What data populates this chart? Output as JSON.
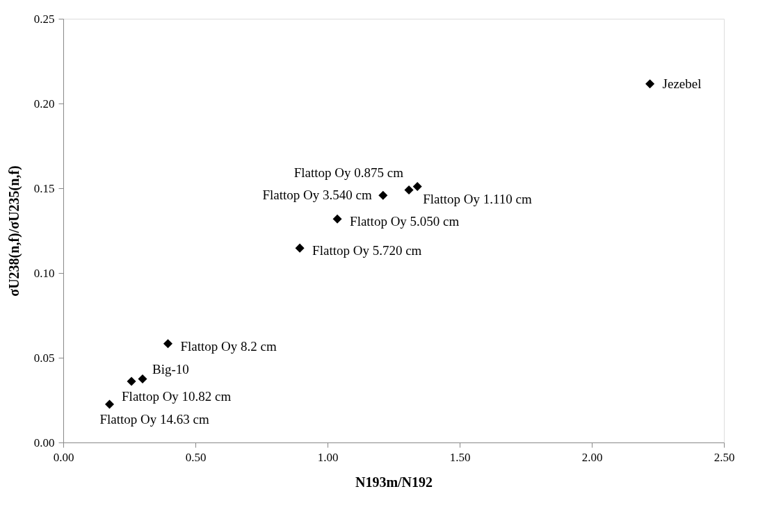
{
  "chart_data": {
    "type": "scatter",
    "xlabel": "N193m/N192",
    "ylabel": "σU238(n,f)/σU235(n,f)",
    "x": [
      2.22,
      1.308,
      1.21,
      1.34,
      1.037,
      0.895,
      0.396,
      0.3,
      0.258,
      0.175
    ],
    "series": [
      {
        "color": "#000000",
        "values": [
          0.2116,
          0.149,
          0.1458,
          0.151,
          0.1319,
          0.1147,
          0.0583,
          0.0375,
          0.0361,
          0.0225
        ]
      }
    ],
    "annotations": [
      {
        "text": "Jezebel",
        "x": 2.22,
        "y": 0.2116
      },
      {
        "text": "Flattop Oy 0.875 cm",
        "x": 1.308,
        "y": 0.149
      },
      {
        "text": "Flattop Oy 3.540 cm",
        "x": 1.21,
        "y": 0.1458
      },
      {
        "text": "Flattop Oy 1.110 cm",
        "x": 1.34,
        "y": 0.151
      },
      {
        "text": "Flattop Oy  5.050 cm",
        "x": 1.037,
        "y": 0.1319
      },
      {
        "text": "Flattop Oy 5.720 cm",
        "x": 0.895,
        "y": 0.1147
      },
      {
        "text": "Flattop Oy 8.2 cm",
        "x": 0.396,
        "y": 0.0583
      },
      {
        "text": "Big-10",
        "x": 0.3,
        "y": 0.0375
      },
      {
        "text": "Flattop Oy 10.82 cm",
        "x": 0.258,
        "y": 0.0361
      },
      {
        "text": "Flattop Oy 14.63 cm",
        "x": 0.175,
        "y": 0.0225
      }
    ],
    "xlim": [
      0,
      2.5
    ],
    "xticks": [
      {
        "value": 0,
        "label": "0.00"
      },
      {
        "value": 0.5,
        "label": "0.50"
      },
      {
        "value": 1,
        "label": "1.00"
      },
      {
        "value": 1.5,
        "label": "1.50"
      },
      {
        "value": 2,
        "label": "2.00"
      },
      {
        "value": 2.5,
        "label": "2.50"
      }
    ],
    "ylim": [
      0,
      0.25
    ],
    "yticks": [
      {
        "value": 0,
        "label": "0.00"
      },
      {
        "value": 0.05,
        "label": "0.05"
      },
      {
        "value": 0.1,
        "label": "0.10"
      },
      {
        "value": 0.15,
        "label": "0.15"
      },
      {
        "value": 0.2,
        "label": "0.20"
      },
      {
        "value": 0.25,
        "label": "0.25"
      }
    ],
    "marker": "diamond",
    "grid": false
  }
}
